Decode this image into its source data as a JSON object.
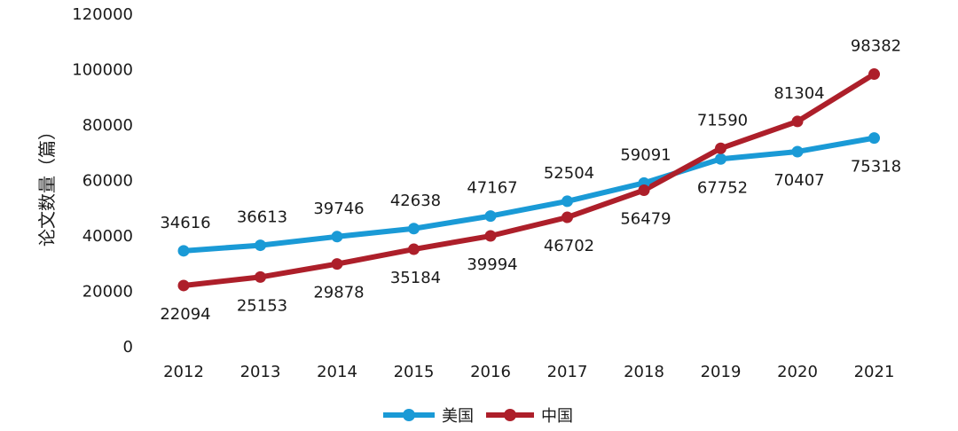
{
  "chart_data": {
    "type": "line",
    "title": "",
    "xlabel": "",
    "ylabel": "论文数量（篇）",
    "ylim": [
      0,
      120000
    ],
    "yticks": [
      "0",
      "20000",
      "40000",
      "60000",
      "80000",
      "100000",
      "120000"
    ],
    "categories": [
      "2012",
      "2013",
      "2014",
      "2015",
      "2016",
      "2017",
      "2018",
      "2019",
      "2020",
      "2021"
    ],
    "grid": false,
    "legend_position": "bottom",
    "series": [
      {
        "name": "美国",
        "color": "#1a9ad6",
        "values": [
          34616,
          36613,
          39746,
          42638,
          47167,
          52504,
          59091,
          67752,
          70407,
          75318
        ],
        "label_position": [
          "above",
          "above",
          "above",
          "above",
          "above",
          "above",
          "above",
          "below",
          "below",
          "below"
        ]
      },
      {
        "name": "中国",
        "color": "#ad1f2a",
        "values": [
          22094,
          25153,
          29878,
          35184,
          39994,
          46702,
          56479,
          71590,
          81304,
          98382
        ],
        "label_position": [
          "below",
          "below",
          "below",
          "below",
          "below",
          "below",
          "below",
          "above",
          "above",
          "above"
        ]
      }
    ]
  }
}
